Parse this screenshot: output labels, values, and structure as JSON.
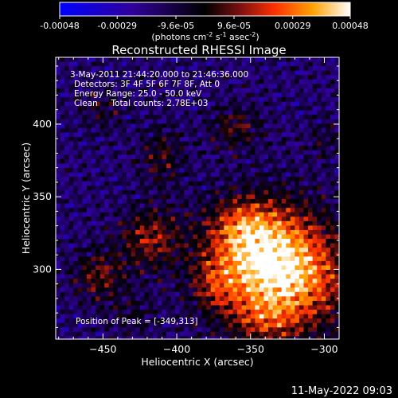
{
  "colorbar": {
    "ticks": [
      "-0.00048",
      "-0.00029",
      "-9.6e-05",
      "9.6e-05",
      "0.00029",
      "0.00048"
    ],
    "tick_values": [
      -0.00048,
      -0.00029,
      -9.6e-05,
      9.6e-05,
      0.00029,
      0.00048
    ],
    "range": [
      -0.00048,
      0.00048
    ],
    "units_main": "(photons cm",
    "units_sup1": "-2",
    "units_mid": " s",
    "units_sup2": "-1",
    "units_mid2": " asec",
    "units_sup3": "-2",
    "units_end": ")",
    "colors": [
      "#0000ff",
      "#30009a",
      "#000000",
      "#7a1010",
      "#ff3000",
      "#ffa000",
      "#ffffff"
    ]
  },
  "chart_data": {
    "type": "heatmap",
    "title": "Reconstructed RHESSI Image",
    "xlabel": "Heliocentric X (arcsec)",
    "ylabel": "Heliocentric Y (arcsec)",
    "xlim": [
      -482,
      -290
    ],
    "ylim": [
      252,
      446
    ],
    "xticks": [
      -450,
      -400,
      -350,
      -300
    ],
    "yticks": [
      300,
      350,
      400
    ],
    "xtick_labels": [
      "−450",
      "−400",
      "−350",
      "−300"
    ],
    "ytick_labels": [
      "300",
      "350",
      "400"
    ],
    "grid": false,
    "info_lines": [
      "3-May-2011 21:44:20.000 to 21:46:36.000",
      "Detectors: 3F 4F 5F 6F 7F 8F, Att 0",
      "Energy Range: 25.0 - 50.0 keV",
      "Clean     Total counts: 2.78E+03"
    ],
    "peak_text": "Position of Peak = [-349,313]",
    "peak": [
      -349,
      313
    ]
  },
  "footer": {
    "timestamp": "11-May-2022 09:03"
  }
}
